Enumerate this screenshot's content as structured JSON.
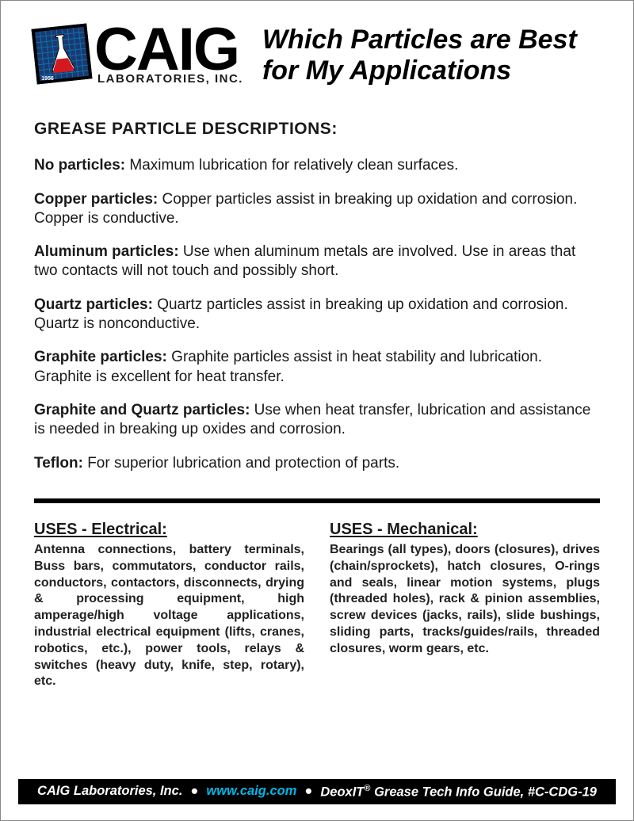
{
  "logo": {
    "brand": "CAIG",
    "subtitle": "LABORATORIES, INC.",
    "year": "1956"
  },
  "title_line1": "Which Particles are Best",
  "title_line2": "for My Applications",
  "section_heading": "GREASE  PARTICLE DESCRIPTIONS:",
  "descriptions": [
    {
      "term": "No particles:",
      "body": "  Maximum lubrication for relatively clean surfaces."
    },
    {
      "term": "Copper particles:",
      "body": "  Copper particles assist in breaking up oxidation and corrosion. Copper is conductive."
    },
    {
      "term": "Aluminum particles:",
      "body": "  Use when aluminum metals are involved. Use in areas that two contacts will not touch and possibly short."
    },
    {
      "term": "Quartz particles:",
      "body": "  Quartz particles assist in breaking up oxidation and corrosion. Quartz is nonconductive."
    },
    {
      "term": "Graphite particles:",
      "body": "  Graphite particles assist in heat stability and lubrication. Graphite is excellent for heat transfer."
    },
    {
      "term": "Graphite and Quartz particles:",
      "body": "  Use when heat transfer, lubrication and assistance is needed in breaking up oxides and corrosion."
    },
    {
      "term": "Teflon:",
      "body": "  For superior lubrication and protection of parts."
    }
  ],
  "uses": {
    "electrical": {
      "title": "USES - Electrical:",
      "body": "Antenna connections, battery terminals, Buss bars, commutators, conductor rails, conductors, contactors, disconnects, drying & processing equipment,  high amperage/high voltage applications,  industrial electrical equipment (lifts, cranes, robotics, etc.), power tools, relays & switches (heavy duty, knife, step, rotary), etc."
    },
    "mechanical": {
      "title": "USES - Mechanical:",
      "body": "Bearings (all types), doors (closures), drives (chain/sprockets), hatch closures, O-rings and seals, linear motion systems, plugs (threaded holes), rack & pinion assemblies, screw devices (jacks, rails), slide bushings, sliding parts, tracks/guides/rails, threaded closures, worm gears, etc."
    }
  },
  "footer": {
    "company": "CAIG Laboratories, Inc.",
    "url": "www.caig.com",
    "product_prefix": "DeoxIT",
    "product_suffix": " Grease Tech Info Guide, #C-CDG-19"
  },
  "colors": {
    "text": "#1a1a1a",
    "footer_bg": "#000000",
    "footer_url": "#00b7e6",
    "logo_grid": "#0b6fb3",
    "flask_red": "#d31920"
  }
}
